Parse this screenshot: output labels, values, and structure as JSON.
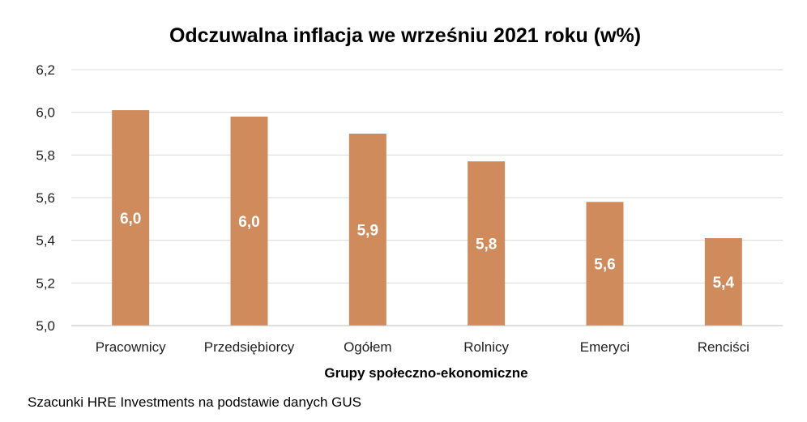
{
  "chart_data": {
    "type": "bar",
    "title": "Odczuwalna inflacja we wrześniu 2021 roku (w%)",
    "xlabel": "Grupy społeczno-ekonomiczne",
    "ylabel": "",
    "categories": [
      "Pracownicy",
      "Przedsiębiorcy",
      "Ogółem",
      "Rolnicy",
      "Emeryci",
      "Renciści"
    ],
    "values": [
      6.01,
      5.98,
      5.9,
      5.77,
      5.58,
      5.41
    ],
    "data_labels": [
      "6,0",
      "6,0",
      "5,9",
      "5,8",
      "5,6",
      "5,4"
    ],
    "ylim": [
      5.0,
      6.2
    ],
    "y_ticks": [
      5.0,
      5.2,
      5.4,
      5.6,
      5.8,
      6.0,
      6.2
    ],
    "y_tick_labels": [
      "5,0",
      "5,2",
      "5,4",
      "5,6",
      "5,8",
      "6,0",
      "6,2"
    ],
    "grid": true,
    "legend": "none",
    "bar_color": "#CF8B5C",
    "label_color": "#FFFFFF"
  },
  "footer": {
    "source": "Szacunki HRE Investments na podstawie danych GUS"
  }
}
